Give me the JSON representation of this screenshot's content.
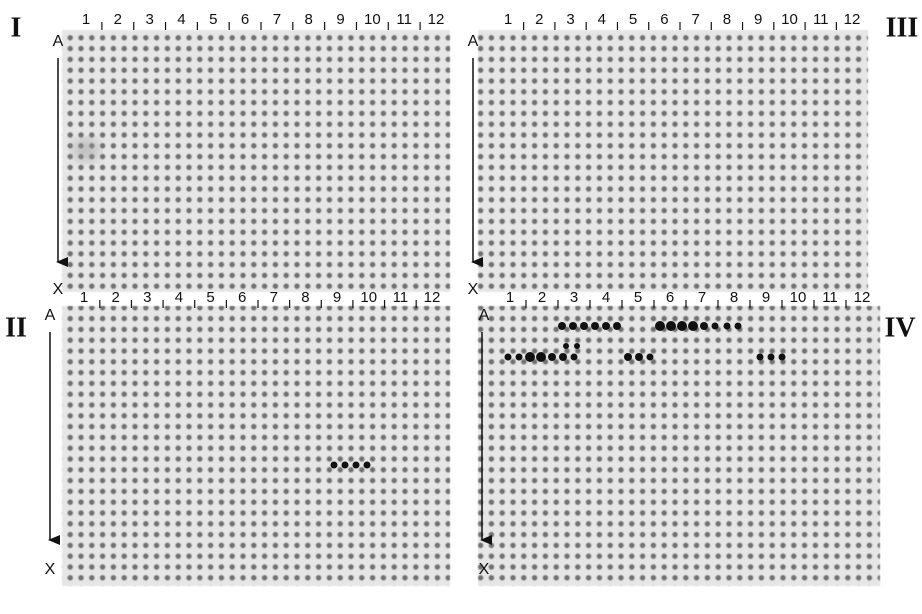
{
  "panels": [
    {
      "label": "I",
      "columns": [
        "1",
        "2",
        "3",
        "4",
        "5",
        "6",
        "7",
        "8",
        "9",
        "10",
        "11",
        "12"
      ],
      "row_start": "A",
      "row_end": "X"
    },
    {
      "label": "II",
      "columns": [
        "1",
        "2",
        "3",
        "4",
        "5",
        "6",
        "7",
        "8",
        "9",
        "10",
        "11",
        "12"
      ],
      "row_start": "A",
      "row_end": "X"
    },
    {
      "label": "III",
      "columns": [
        "1",
        "2",
        "3",
        "4",
        "5",
        "6",
        "7",
        "8",
        "9",
        "10",
        "11",
        "12"
      ],
      "row_start": "A",
      "row_end": "X"
    },
    {
      "label": "IV",
      "columns": [
        "1",
        "2",
        "3",
        "4",
        "5",
        "6",
        "7",
        "8",
        "9",
        "10",
        "11",
        "12"
      ],
      "row_start": "A",
      "row_end": "X"
    }
  ]
}
